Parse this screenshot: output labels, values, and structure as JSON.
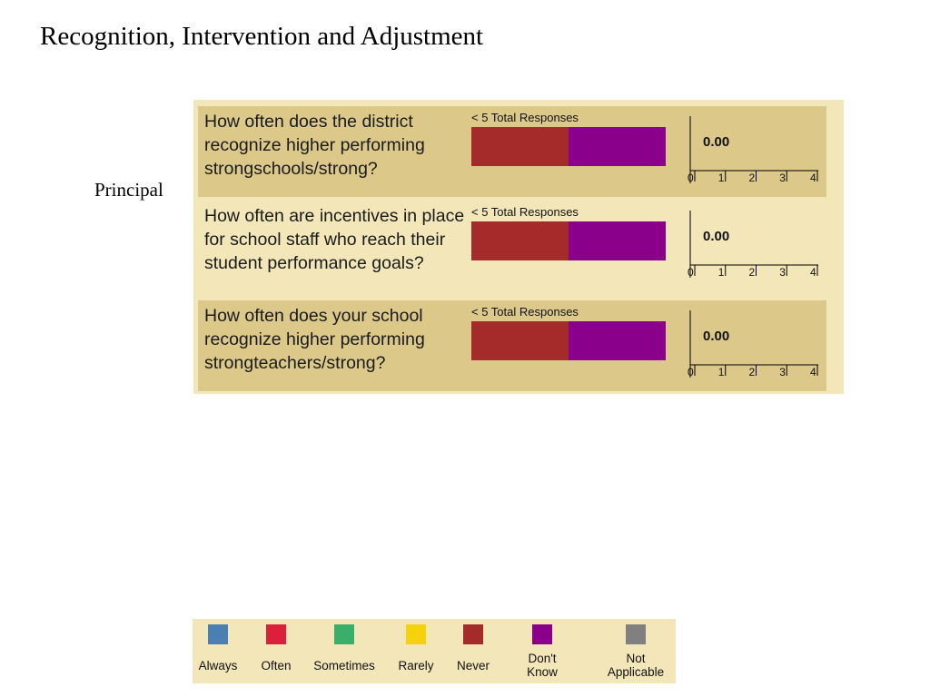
{
  "title": "Recognition, Intervention and Adjustment",
  "respondent": "Principal",
  "chart_data": {
    "type": "bar",
    "orientation": "horizontal-stacked",
    "questions": [
      {
        "text": "How often does the district recognize higher performing strongschools/strong?",
        "responses_label": "< 5 Total Responses",
        "shares": {
          "Never": 0.5,
          "Don't Know": 0.5
        },
        "mean_label": "0.00"
      },
      {
        "text": "How often are incentives in place for school staff who reach their student performance goals?",
        "responses_label": "< 5 Total Responses",
        "shares": {
          "Never": 0.5,
          "Don't Know": 0.5
        },
        "mean_label": "0.00"
      },
      {
        "text": "How often does your school recognize higher performing strongteachers/strong?",
        "responses_label": "< 5 Total Responses",
        "shares": {
          "Never": 0.5,
          "Don't Know": 0.5
        },
        "mean_label": "0.00"
      }
    ],
    "mean_axis": {
      "ticks": [
        "0",
        "1",
        "2",
        "3",
        "4"
      ],
      "range": [
        0,
        4
      ]
    },
    "legend": [
      {
        "label": "Always",
        "color": "#4a7fb5"
      },
      {
        "label": "Often",
        "color": "#dc1f3a"
      },
      {
        "label": "Sometimes",
        "color": "#3aaf6a"
      },
      {
        "label": "Rarely",
        "color": "#f6d20c"
      },
      {
        "label": "Never",
        "color": "#a52a2a"
      },
      {
        "label": "Don't\nKnow",
        "color": "#8b008b"
      },
      {
        "label": "Not\nApplicable",
        "color": "#808080"
      }
    ]
  }
}
